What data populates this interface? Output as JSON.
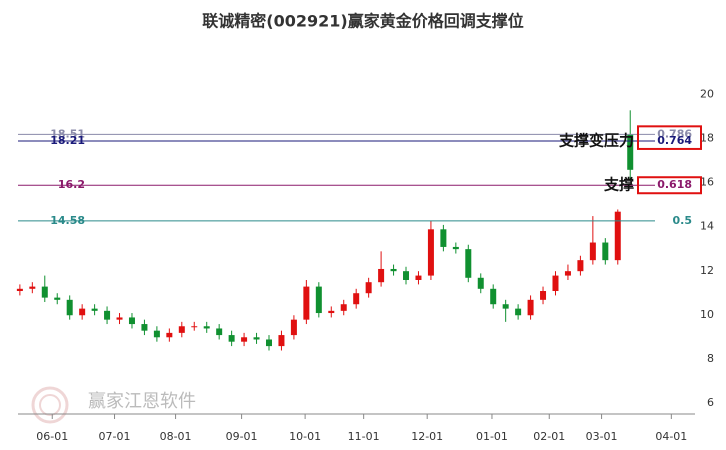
{
  "chart_data": {
    "type": "candlestick",
    "title": "联诚精密(002921)赢家黄金价格回调支撑位",
    "watermark": "赢家江恩软件",
    "open": [
      11.4,
      11.5,
      11.6,
      11.1,
      11.0,
      10.3,
      10.6,
      10.5,
      10.1,
      10.2,
      9.9,
      9.6,
      9.3,
      9.5,
      9.8,
      9.8,
      9.7,
      9.4,
      9.1,
      9.3,
      9.2,
      8.9,
      9.4,
      10.1,
      11.6,
      10.4,
      10.5,
      10.8,
      11.3,
      11.8,
      12.4,
      12.3,
      11.9,
      12.1,
      14.2,
      13.4,
      13.3,
      12.0,
      11.5,
      10.8,
      10.6,
      10.3,
      11.0,
      11.4,
      12.1,
      12.3,
      12.8,
      13.6,
      12.8,
      18.5
    ],
    "high": [
      11.7,
      11.8,
      12.1,
      11.3,
      11.2,
      10.8,
      10.8,
      10.7,
      10.4,
      10.4,
      10.1,
      9.8,
      9.7,
      10.0,
      10.0,
      10.0,
      9.9,
      9.6,
      9.5,
      9.5,
      9.4,
      9.6,
      10.3,
      11.9,
      11.8,
      10.7,
      11.0,
      11.5,
      12.0,
      13.2,
      12.6,
      12.5,
      12.3,
      14.6,
      14.4,
      13.6,
      13.5,
      12.2,
      11.7,
      11.0,
      10.8,
      11.2,
      11.6,
      12.3,
      12.6,
      13.0,
      14.8,
      13.8,
      15.1,
      19.6
    ],
    "low": [
      11.2,
      11.3,
      10.9,
      10.8,
      10.1,
      10.1,
      10.3,
      9.9,
      9.9,
      9.7,
      9.4,
      9.1,
      9.1,
      9.3,
      9.6,
      9.5,
      9.2,
      8.9,
      8.9,
      9.0,
      8.7,
      8.7,
      9.2,
      9.9,
      10.2,
      10.2,
      10.3,
      10.6,
      11.1,
      11.6,
      12.1,
      11.7,
      11.7,
      11.9,
      13.2,
      13.1,
      11.8,
      11.3,
      10.6,
      10.0,
      10.1,
      10.1,
      10.8,
      11.2,
      11.9,
      12.1,
      12.6,
      12.6,
      12.6,
      16.4
    ],
    "close": [
      11.5,
      11.6,
      11.1,
      11.0,
      10.3,
      10.6,
      10.5,
      10.1,
      10.2,
      9.9,
      9.6,
      9.3,
      9.5,
      9.8,
      9.8,
      9.7,
      9.4,
      9.1,
      9.3,
      9.2,
      8.9,
      9.4,
      10.1,
      11.6,
      10.4,
      10.5,
      10.8,
      11.3,
      11.8,
      12.4,
      12.3,
      11.9,
      12.1,
      14.2,
      13.4,
      13.3,
      12.0,
      11.5,
      10.8,
      10.6,
      10.3,
      11.0,
      11.4,
      12.1,
      12.3,
      12.8,
      13.6,
      12.8,
      15.0,
      16.9
    ],
    "up_color": "#e01010",
    "down_color": "#109030",
    "xlim": [
      -0.15,
      54.2
    ],
    "xticks": [
      {
        "value": 2.6,
        "label": "06-01"
      },
      {
        "value": 7.6,
        "label": "07-01"
      },
      {
        "value": 12.5,
        "label": "08-01"
      },
      {
        "value": 17.8,
        "label": "09-01"
      },
      {
        "value": 22.9,
        "label": "10-01"
      },
      {
        "value": 27.6,
        "label": "11-01"
      },
      {
        "value": 32.7,
        "label": "12-01"
      },
      {
        "value": 37.9,
        "label": "01-01"
      },
      {
        "value": 42.5,
        "label": "02-01"
      },
      {
        "value": 46.7,
        "label": "03-01"
      },
      {
        "value": 52.3,
        "label": "04-01"
      }
    ],
    "ylim": [
      6,
      20
    ],
    "yticks": [
      6,
      8,
      10,
      12,
      14,
      16,
      18,
      20
    ],
    "levels": [
      {
        "value": 18.51,
        "ratio": 0.786,
        "color": "#8a8aaa"
      },
      {
        "value": 18.21,
        "ratio": 0.764,
        "color": "#1a1a7a",
        "annotation": "支撑变压力"
      },
      {
        "value": 16.2,
        "ratio": 0.618,
        "color": "#8b1a6b",
        "annotation": "支撑"
      },
      {
        "value": 14.58,
        "ratio": 0.5,
        "color": "#2a8a8a"
      }
    ]
  }
}
